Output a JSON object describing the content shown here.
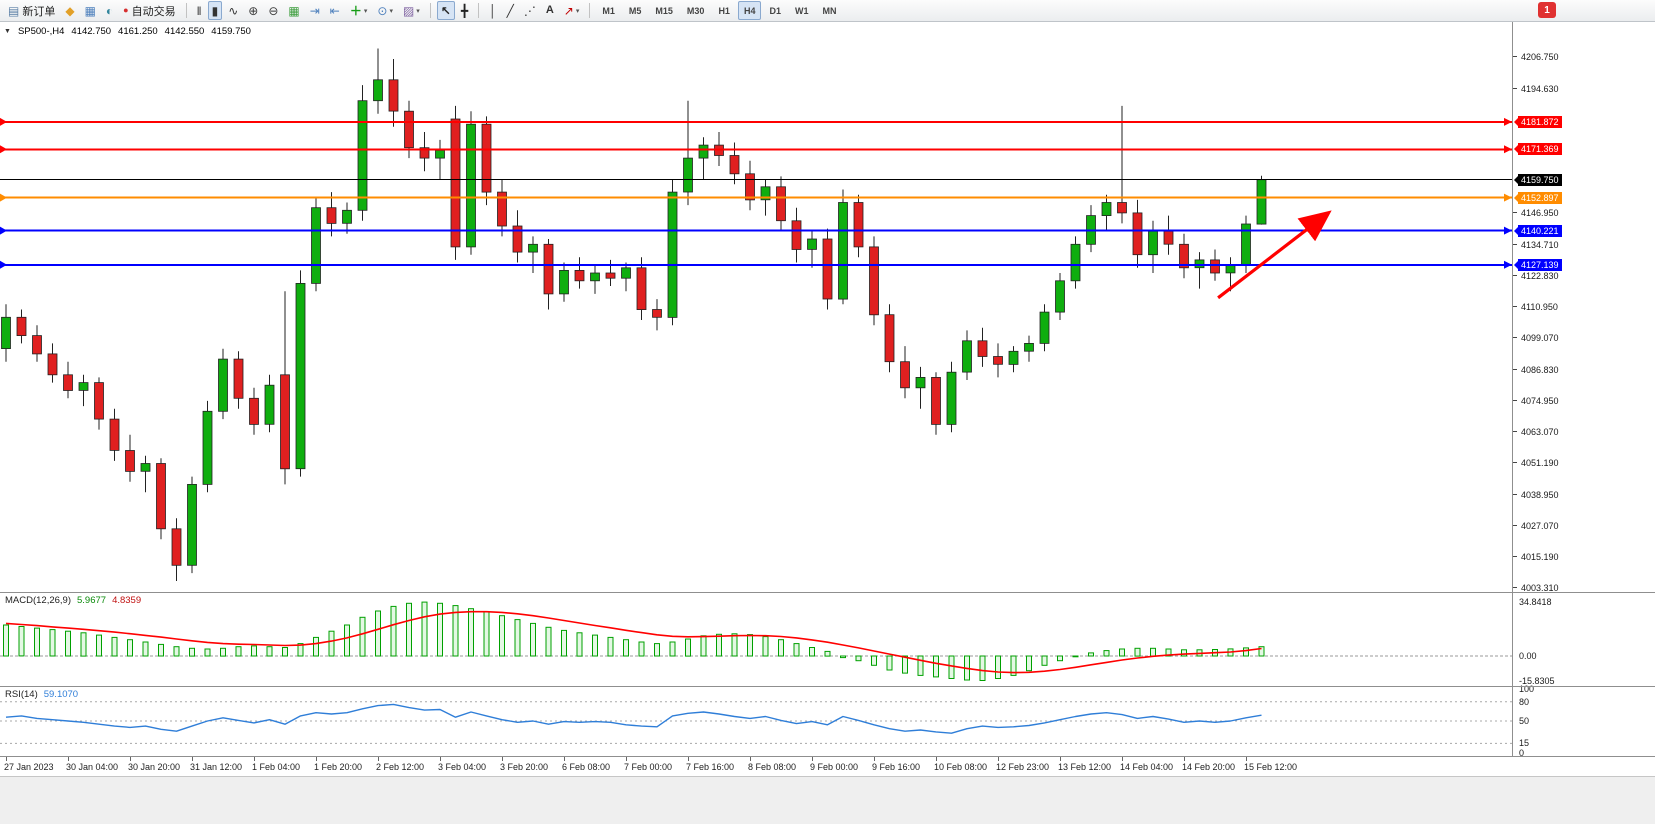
{
  "icons": {
    "new-order": "▤",
    "metaeditor": "◆",
    "new-chart": "▦",
    "profiles": "◐",
    "autotrading": "●",
    "bars": "‖",
    "candles": "▮",
    "line": "∿",
    "zoom-in": "⊕",
    "zoom-out": "⊖",
    "grid": "▦",
    "autoscroll": "⇥",
    "shift": "⇤",
    "indicators": "＋",
    "clock": "⊙",
    "template": "▨",
    "cursor": "↖",
    "crosshair": "╋",
    "vline": "│",
    "tline": "╱",
    "channel": "⋰",
    "text": "A",
    "arrow-obj": "↗",
    "dropdown": "▾"
  },
  "toolbar": {
    "notification_count": "1",
    "groups": [
      {
        "name": "trade",
        "items": [
          {
            "name": "new-order",
            "icon": "new-order",
            "label": "新订单"
          },
          {
            "name": "metaeditor",
            "icon": "metaeditor"
          },
          {
            "name": "new-chart",
            "icon": "new-chart"
          },
          {
            "name": "profiles",
            "icon": "profiles"
          },
          {
            "name": "autotrading",
            "icon": "autotrading",
            "label": "自动交易"
          }
        ]
      },
      {
        "name": "chart-tools",
        "items": [
          {
            "name": "bar-chart",
            "icon": "bars"
          },
          {
            "name": "candlestick-chart",
            "icon": "candles",
            "active": true
          },
          {
            "name": "line-chart",
            "icon": "line"
          },
          {
            "name": "zoom-in",
            "icon": "zoom-in"
          },
          {
            "name": "zoom-out",
            "icon": "zoom-out"
          },
          {
            "name": "tile-windows",
            "icon": "grid"
          },
          {
            "name": "auto-scroll",
            "icon": "autoscroll"
          },
          {
            "name": "chart-shift",
            "icon": "shift"
          },
          {
            "name": "indicators",
            "icon": "indicators",
            "dropdown": true
          },
          {
            "name": "periods",
            "icon": "clock",
            "dropdown": true
          },
          {
            "name": "templates",
            "icon": "template",
            "dropdown": true
          }
        ]
      },
      {
        "name": "cursor-tools",
        "items": [
          {
            "name": "cursor",
            "icon": "cursor",
            "active": true
          },
          {
            "name": "crosshair",
            "icon": "crosshair"
          }
        ]
      },
      {
        "name": "object-tools",
        "items": [
          {
            "name": "vertical-line",
            "icon": "vline"
          },
          {
            "name": "trend-line",
            "icon": "tline"
          },
          {
            "name": "equidistant-channel",
            "icon": "channel"
          },
          {
            "name": "text-label",
            "icon": "text"
          },
          {
            "name": "arrows",
            "icon": "arrow-obj",
            "dropdown": true
          }
        ]
      },
      {
        "name": "timeframes",
        "items": [
          {
            "name": "tf-m1",
            "label": "M1"
          },
          {
            "name": "tf-m5",
            "label": "M5"
          },
          {
            "name": "tf-m15",
            "label": "M15"
          },
          {
            "name": "tf-m30",
            "label": "M30"
          },
          {
            "name": "tf-h1",
            "label": "H1"
          },
          {
            "name": "tf-h4",
            "label": "H4",
            "active": true
          },
          {
            "name": "tf-d1",
            "label": "D1"
          },
          {
            "name": "tf-w1",
            "label": "W1"
          },
          {
            "name": "tf-mn",
            "label": "MN"
          }
        ]
      }
    ]
  },
  "chart": {
    "collapse_arrow": "▼",
    "title": {
      "symbol_period": "SP500-,H4",
      "open": "4142.750",
      "high": "4161.250",
      "low": "4142.550",
      "close": "4159.750"
    }
  },
  "colors": {
    "bull": "#0FAE0F",
    "bear": "#E02020",
    "wick": "#222222",
    "macd_hist": "#00A000",
    "macd_signal": "#FF0000",
    "rsi_line": "#2F7ED8",
    "current_price_line": "#000000",
    "annotation": "#FF0000"
  },
  "chart_data": {
    "type": "candlestick",
    "symbol": "SP500-",
    "timeframe": "H4",
    "price_axis_ticks": [
      4206.75,
      4194.63,
      4146.95,
      4134.71,
      4122.83,
      4110.95,
      4099.07,
      4086.83,
      4074.95,
      4063.07,
      4051.19,
      4038.95,
      4027.07,
      4015.19,
      4003.31
    ],
    "hlines": [
      {
        "price": 4181.872,
        "color": "#FF0000"
      },
      {
        "price": 4171.369,
        "color": "#FF0000"
      },
      {
        "price": 4159.75,
        "color": "#000000",
        "current": true
      },
      {
        "price": 4152.897,
        "color": "#FF8C00"
      },
      {
        "price": 4140.221,
        "color": "#0000FF"
      },
      {
        "price": 4127.139,
        "color": "#0000FF"
      }
    ],
    "times": [
      "27 Jan 2023",
      "30 Jan 04:00",
      "30 Jan 20:00",
      "31 Jan 12:00",
      "1 Feb 04:00",
      "1 Feb 20:00",
      "2 Feb 12:00",
      "3 Feb 04:00",
      "3 Feb 20:00",
      "6 Feb 08:00",
      "7 Feb 00:00",
      "7 Feb 16:00",
      "8 Feb 08:00",
      "9 Feb 00:00",
      "9 Feb 16:00",
      "10 Feb 08:00",
      "12 Feb 23:00",
      "13 Feb 12:00",
      "14 Feb 04:00",
      "14 Feb 20:00",
      "15 Feb 12:00"
    ],
    "candles": [
      [
        4095,
        4112,
        4090,
        4107
      ],
      [
        4107,
        4110,
        4097,
        4100
      ],
      [
        4100,
        4104,
        4090,
        4093
      ],
      [
        4093,
        4097,
        4082,
        4085
      ],
      [
        4085,
        4090,
        4076,
        4079
      ],
      [
        4079,
        4085,
        4073,
        4082
      ],
      [
        4082,
        4084,
        4064,
        4068
      ],
      [
        4068,
        4072,
        4052,
        4056
      ],
      [
        4056,
        4062,
        4044,
        4048
      ],
      [
        4048,
        4054,
        4040,
        4051
      ],
      [
        4051,
        4053,
        4022,
        4026
      ],
      [
        4026,
        4030,
        4006,
        4012
      ],
      [
        4012,
        4046,
        4009,
        4043
      ],
      [
        4043,
        4075,
        4040,
        4071
      ],
      [
        4071,
        4095,
        4068,
        4091
      ],
      [
        4091,
        4094,
        4072,
        4076
      ],
      [
        4076,
        4080,
        4062,
        4066
      ],
      [
        4066,
        4085,
        4063,
        4081
      ],
      [
        4085,
        4117,
        4043,
        4049
      ],
      [
        4049,
        4125,
        4046,
        4120
      ],
      [
        4120,
        4153,
        4117,
        4149
      ],
      [
        4149,
        4155,
        4138,
        4143
      ],
      [
        4143,
        4151,
        4139,
        4148
      ],
      [
        4148,
        4196,
        4144,
        4190
      ],
      [
        4190,
        4210,
        4185,
        4198
      ],
      [
        4198,
        4206,
        4180,
        4186
      ],
      [
        4186,
        4190,
        4168,
        4172
      ],
      [
        4172,
        4178,
        4163,
        4168
      ],
      [
        4168,
        4175,
        4160,
        4171
      ],
      [
        4183,
        4188,
        4129,
        4134
      ],
      [
        4134,
        4186,
        4131,
        4181
      ],
      [
        4181,
        4184,
        4150,
        4155
      ],
      [
        4155,
        4160,
        4138,
        4142
      ],
      [
        4142,
        4148,
        4128,
        4132
      ],
      [
        4132,
        4138,
        4124,
        4135
      ],
      [
        4135,
        4137,
        4110,
        4116
      ],
      [
        4116,
        4128,
        4113,
        4125
      ],
      [
        4125,
        4130,
        4118,
        4121
      ],
      [
        4121,
        4127,
        4116,
        4124
      ],
      [
        4124,
        4129,
        4119,
        4122
      ],
      [
        4122,
        4128,
        4117,
        4126
      ],
      [
        4126,
        4130,
        4106,
        4110
      ],
      [
        4110,
        4114,
        4102,
        4107
      ],
      [
        4107,
        4160,
        4104,
        4155
      ],
      [
        4155,
        4190,
        4150,
        4168
      ],
      [
        4168,
        4176,
        4160,
        4173
      ],
      [
        4173,
        4178,
        4165,
        4169
      ],
      [
        4169,
        4174,
        4158,
        4162
      ],
      [
        4162,
        4167,
        4148,
        4152
      ],
      [
        4152,
        4160,
        4146,
        4157
      ],
      [
        4157,
        4161,
        4140,
        4144
      ],
      [
        4144,
        4149,
        4128,
        4133
      ],
      [
        4133,
        4140,
        4126,
        4137
      ],
      [
        4137,
        4141,
        4110,
        4114
      ],
      [
        4114,
        4156,
        4112,
        4151
      ],
      [
        4151,
        4154,
        4130,
        4134
      ],
      [
        4134,
        4138,
        4104,
        4108
      ],
      [
        4108,
        4112,
        4086,
        4090
      ],
      [
        4090,
        4096,
        4076,
        4080
      ],
      [
        4080,
        4088,
        4072,
        4084
      ],
      [
        4084,
        4086,
        4062,
        4066
      ],
      [
        4066,
        4090,
        4063,
        4086
      ],
      [
        4086,
        4102,
        4083,
        4098
      ],
      [
        4098,
        4103,
        4088,
        4092
      ],
      [
        4092,
        4097,
        4084,
        4089
      ],
      [
        4089,
        4096,
        4086,
        4094
      ],
      [
        4094,
        4100,
        4090,
        4097
      ],
      [
        4097,
        4112,
        4094,
        4109
      ],
      [
        4109,
        4124,
        4106,
        4121
      ],
      [
        4121,
        4138,
        4118,
        4135
      ],
      [
        4135,
        4150,
        4132,
        4146
      ],
      [
        4146,
        4154,
        4140,
        4151
      ],
      [
        4151,
        4188,
        4143,
        4147
      ],
      [
        4147,
        4152,
        4126,
        4131
      ],
      [
        4131,
        4144,
        4124,
        4140
      ],
      [
        4140,
        4146,
        4131,
        4135
      ],
      [
        4135,
        4139,
        4122,
        4126
      ],
      [
        4126,
        4132,
        4118,
        4129
      ],
      [
        4129,
        4133,
        4121,
        4124
      ],
      [
        4124,
        4130,
        4117,
        4127
      ],
      [
        4127,
        4146,
        4124,
        4142.75
      ],
      [
        4142.75,
        4161.25,
        4142.55,
        4159.75
      ]
    ],
    "macd": {
      "label": "MACD(12,26,9)",
      "main_value": "5.9677",
      "signal_value": "4.8359",
      "levels": [
        {
          "value": 34.8418,
          "label": "34.8418"
        },
        {
          "value": 0,
          "label": "0.00"
        },
        {
          "value": -15.8305,
          "label": "-15.8305"
        }
      ],
      "histogram": [
        20,
        19,
        18,
        17,
        16,
        15,
        13.5,
        12,
        10.5,
        9,
        7.5,
        6,
        5,
        4.5,
        5,
        6,
        6.5,
        6,
        5.5,
        8,
        12,
        16,
        20,
        25,
        29,
        32,
        34,
        34.8,
        34,
        32.5,
        30.5,
        28.5,
        26,
        23.5,
        21,
        18.5,
        16.5,
        15,
        13.5,
        12,
        10.5,
        9,
        8,
        9,
        11,
        13,
        14,
        14.3,
        13.8,
        12.5,
        10.5,
        8,
        5.5,
        3,
        -1,
        -3,
        -6,
        -9,
        -11,
        -12.5,
        -13.5,
        -14.5,
        -15.5,
        -15.8,
        -14.5,
        -12.5,
        -9.5,
        -6,
        -3,
        -0.5,
        2,
        3.5,
        4.5,
        5,
        5,
        4.5,
        4,
        4,
        4.2,
        4.6,
        5.2,
        5.97
      ],
      "signal": [
        21,
        20.3,
        19.6,
        18.8,
        18,
        17.2,
        16.3,
        15.4,
        14.4,
        13.3,
        12.2,
        11,
        9.8,
        8.8,
        8,
        7.6,
        7.4,
        7.1,
        6.8,
        7,
        8,
        9.6,
        11.7,
        14.3,
        17.2,
        20.2,
        22.9,
        25.3,
        27,
        28.1,
        28.6,
        28.6,
        28.1,
        27.2,
        26,
        24.5,
        22.9,
        21.3,
        19.7,
        18.2,
        16.6,
        15.1,
        13.7,
        12.7,
        12.4,
        12.5,
        12.8,
        13.1,
        13.2,
        13.1,
        12.6,
        11.7,
        10.4,
        8.9,
        7.1,
        5.2,
        3.2,
        1.2,
        -0.8,
        -2.8,
        -4.7,
        -6.4,
        -8,
        -9.4,
        -10.3,
        -10.7,
        -10.5,
        -9.8,
        -8.7,
        -7.3,
        -5.7,
        -4.1,
        -2.6,
        -1.3,
        -0.2,
        0.6,
        1.2,
        1.7,
        2.1,
        2.6,
        3.5,
        4.84
      ]
    },
    "rsi": {
      "label": "RSI(14)",
      "value": "59.1070",
      "levels": [
        "100",
        "80",
        "50",
        "15",
        "0"
      ],
      "level_values": [
        100,
        80,
        50,
        15,
        0
      ],
      "dashed_levels": [
        80,
        50,
        15
      ],
      "values": [
        56,
        58,
        54,
        52,
        50,
        48,
        45,
        42,
        40,
        42,
        37,
        34,
        42,
        50,
        55,
        51,
        47,
        52,
        45,
        58,
        63,
        61,
        63,
        69,
        74,
        76,
        71,
        67,
        68,
        56,
        64,
        58,
        52,
        48,
        50,
        45,
        49,
        48,
        49,
        48,
        44,
        42,
        41,
        58,
        62,
        64,
        61,
        57,
        54,
        57,
        51,
        46,
        49,
        44,
        57,
        51,
        44,
        38,
        34,
        36,
        33,
        31,
        38,
        42,
        40,
        41,
        43,
        47,
        52,
        57,
        61,
        63,
        60,
        54,
        57,
        53,
        48,
        50,
        48,
        50,
        55,
        59.1
      ]
    },
    "annotation_arrow": {
      "from": {
        "index": 78.2,
        "price": 4114.5
      },
      "to": {
        "index": 85.2,
        "price": 4146.5
      },
      "color": "#FF0000"
    }
  }
}
